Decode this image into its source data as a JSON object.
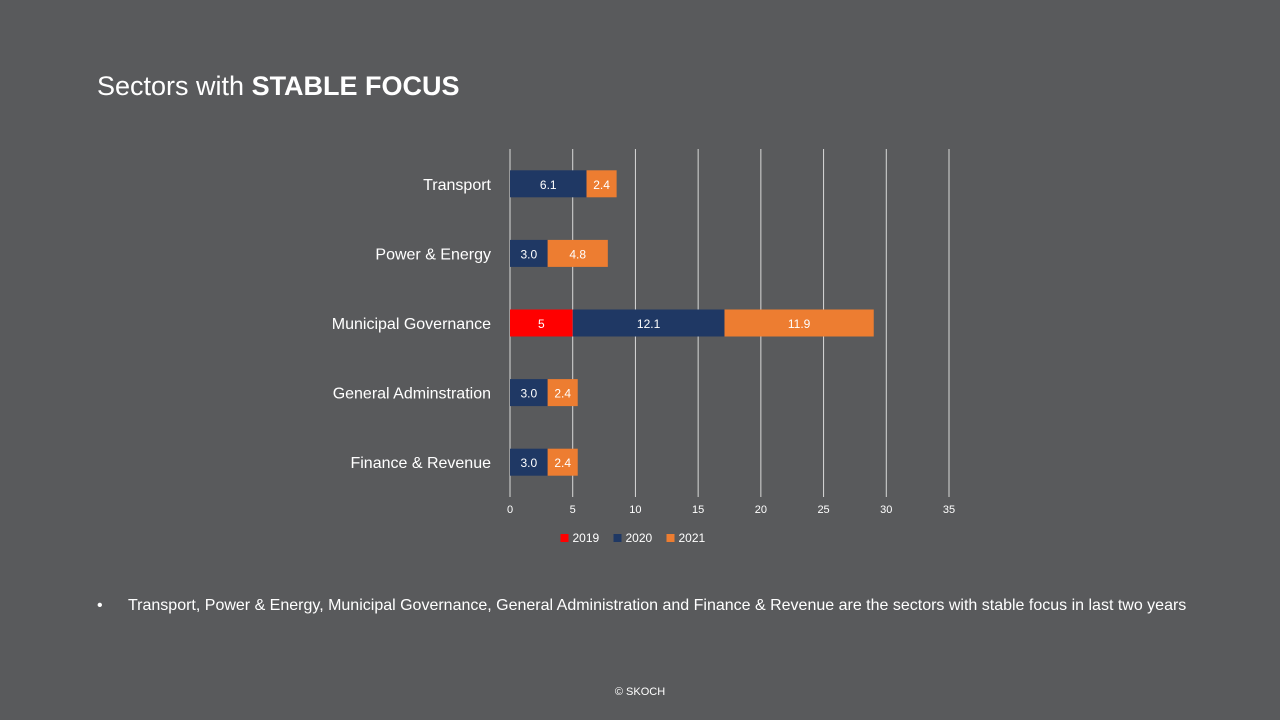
{
  "slide": {
    "title_normal": "Sectors with ",
    "title_bold": "STABLE FOCUS",
    "bullet_symbol": "•",
    "bullet_text": "Transport, Power & Energy, Municipal Governance, General Administration and Finance & Revenue are the sectors with stable focus in last two years",
    "footer": "© SKOCH"
  },
  "chart_data": {
    "type": "bar",
    "orientation": "horizontal",
    "stacked": true,
    "categories": [
      "Transport",
      "Power & Energy",
      "Municipal Governance",
      "General Adminstration",
      "Finance & Revenue"
    ],
    "series": [
      {
        "name": "2019",
        "color": "#ff0000",
        "values": [
          0,
          0,
          5,
          0,
          0
        ],
        "labels": [
          "",
          "",
          "5",
          "",
          ""
        ]
      },
      {
        "name": "2020",
        "color": "#1f3864",
        "values": [
          6.1,
          3.0,
          12.1,
          3.0,
          3.0
        ],
        "labels": [
          "6.1",
          "3.0",
          "12.1",
          "3.0",
          "3.0"
        ]
      },
      {
        "name": "2021",
        "color": "#ed7d31",
        "values": [
          2.4,
          4.8,
          11.9,
          2.4,
          2.4
        ],
        "labels": [
          "2.4",
          "4.8",
          "11.9",
          "2.4",
          "2.4"
        ]
      }
    ],
    "xlim": [
      0,
      35
    ],
    "xticks": [
      "0",
      "5",
      "10",
      "15",
      "20",
      "25",
      "30",
      "35"
    ],
    "grid": true,
    "legend_position": "bottom"
  }
}
